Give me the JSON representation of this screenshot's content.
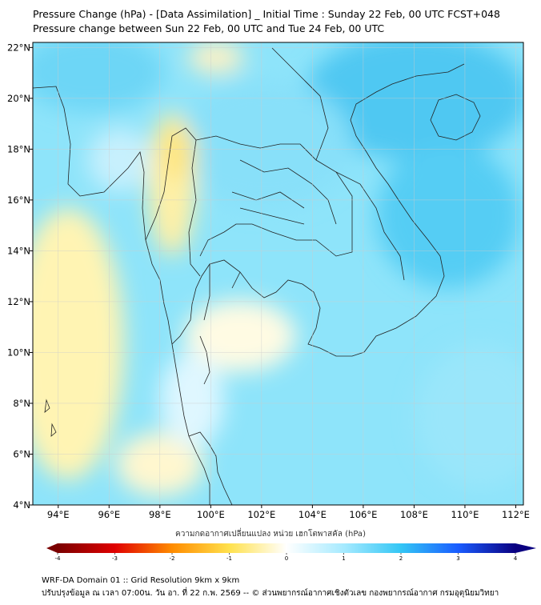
{
  "title": {
    "line1": "Pressure Change (hPa) - [Data Assimilation] _ Initial Time : Sunday 22 Feb, 00 UTC FCST+048",
    "line2": "Pressure change between Sun 22 Feb, 00 UTC and Tue 24 Feb, 00 UTC"
  },
  "map": {
    "lon_ticks": [
      {
        "value": 94,
        "label": "94°E"
      },
      {
        "value": 96,
        "label": "96°E"
      },
      {
        "value": 98,
        "label": "98°E"
      },
      {
        "value": 100,
        "label": "100°E"
      },
      {
        "value": 102,
        "label": "102°E"
      },
      {
        "value": 104,
        "label": "104°E"
      },
      {
        "value": 106,
        "label": "106°E"
      },
      {
        "value": 108,
        "label": "108°E"
      },
      {
        "value": 110,
        "label": "110°E"
      },
      {
        "value": 112,
        "label": "112°E"
      }
    ],
    "lat_ticks": [
      {
        "value": 22,
        "label": "22°N"
      },
      {
        "value": 20,
        "label": "20°N"
      },
      {
        "value": 18,
        "label": "18°N"
      },
      {
        "value": 16,
        "label": "16°N"
      },
      {
        "value": 14,
        "label": "14°N"
      },
      {
        "value": 12,
        "label": "12°N"
      },
      {
        "value": 10,
        "label": "10°N"
      },
      {
        "value": 8,
        "label": "8°N"
      },
      {
        "value": 6,
        "label": "6°N"
      },
      {
        "value": 4,
        "label": "4°N"
      }
    ],
    "lon_range": [
      93.0,
      112.3
    ],
    "lat_range": [
      4.0,
      22.2
    ]
  },
  "colorbar": {
    "label": "ความกดอากาศเปลี่ยนแปลง หน่วย เฮกโตพาสคัล (hPa)",
    "range": [
      -4,
      4
    ],
    "ticks": [
      {
        "value": -4,
        "label": "-4"
      },
      {
        "value": -3,
        "label": "-3"
      },
      {
        "value": -2,
        "label": "-2"
      },
      {
        "value": -1,
        "label": "-1"
      },
      {
        "value": 0,
        "label": "0"
      },
      {
        "value": 1,
        "label": "1"
      },
      {
        "value": 2,
        "label": "2"
      },
      {
        "value": 3,
        "label": "3"
      },
      {
        "value": 4,
        "label": "4"
      }
    ],
    "stops": [
      {
        "value": -4,
        "color": "#7a0000"
      },
      {
        "value": -3,
        "color": "#e00000"
      },
      {
        "value": -2,
        "color": "#ff8c00"
      },
      {
        "value": -1,
        "color": "#ffe14d"
      },
      {
        "value": 0,
        "color": "#ffffff"
      },
      {
        "value": 1,
        "color": "#a6eaff"
      },
      {
        "value": 2,
        "color": "#33c6f5"
      },
      {
        "value": 3,
        "color": "#1a5cff"
      },
      {
        "value": 4,
        "color": "#0a0080"
      }
    ]
  },
  "footer": {
    "line1": "WRF-DA Domain 01 :: Grid Resolution 9km x 9km",
    "line2": "ปรับปรุงข้อมูล ณ เวลา 07:00น. วัน อา. ที่ 22 ก.พ. 2569 -- © ส่วนพยากรณ์อากาศเชิงตัวเลข กองพยากรณ์อากาศ กรมอุตุนิยมวิทยา"
  }
}
